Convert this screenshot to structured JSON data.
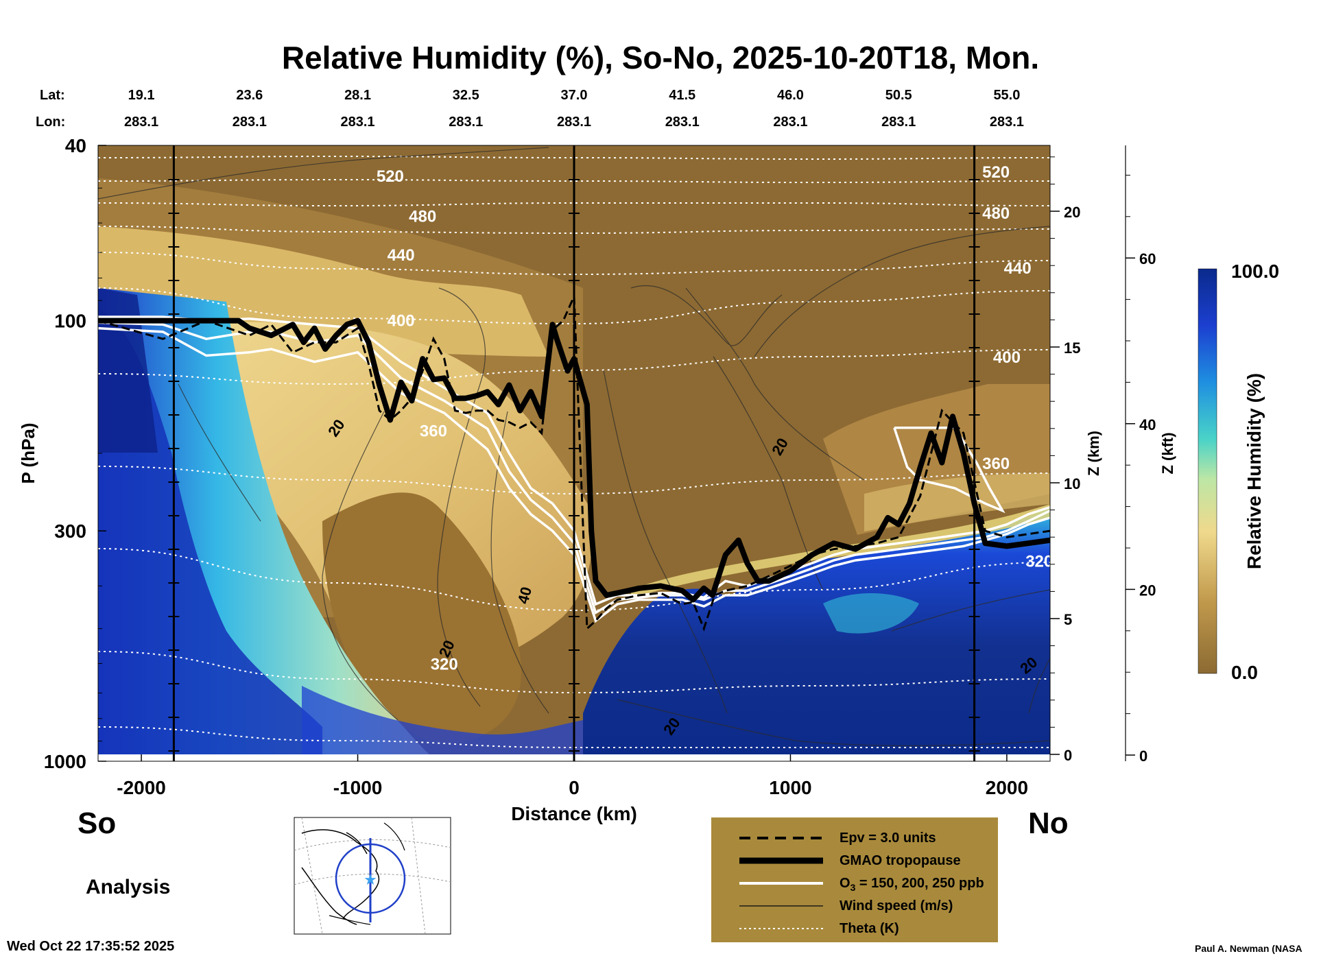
{
  "chart_data": {
    "type": "heatmap",
    "title": "Relative Humidity (%), So-No, 2025-10-20T18, Mon.",
    "xlabel": "Distance (km)",
    "ylabel": "P (hPa)",
    "y2label": "Z (km)",
    "y3label": "Z (kft)",
    "xlim": [
      -2200,
      2200
    ],
    "ylim": [
      1000,
      40
    ],
    "x_ticks": [
      -2000,
      -1000,
      0,
      1000,
      2000
    ],
    "x_tick_labels": [
      "-2000",
      "-1000",
      "0",
      "1000",
      "2000"
    ],
    "y_ticks": [
      40,
      100,
      300,
      1000
    ],
    "y_tick_labels": [
      "40",
      "100",
      "300",
      "1000"
    ],
    "z_km_ticks": [
      0,
      5,
      10,
      15,
      20
    ],
    "z_km_tick_labels": [
      "0",
      "5",
      "10",
      "15",
      "20"
    ],
    "z_kft_ticks": [
      0,
      20,
      40,
      60
    ],
    "z_kft_tick_labels": [
      "0",
      "20",
      "40",
      "60"
    ],
    "lat_label": "Lat:",
    "lon_label": "Lon:",
    "locations": [
      {
        "distance": -2000,
        "lat": "19.1",
        "lon": "283.1"
      },
      {
        "distance": -1500,
        "lat": "23.6",
        "lon": "283.1"
      },
      {
        "distance": -1000,
        "lat": "28.1",
        "lon": "283.1"
      },
      {
        "distance": -500,
        "lat": "32.5",
        "lon": "283.1"
      },
      {
        "distance": 0,
        "lat": "37.0",
        "lon": "283.1"
      },
      {
        "distance": 500,
        "lat": "41.5",
        "lon": "283.1"
      },
      {
        "distance": 1000,
        "lat": "46.0",
        "lon": "283.1"
      },
      {
        "distance": 1500,
        "lat": "50.5",
        "lon": "283.1"
      },
      {
        "distance": 2000,
        "lat": "55.0",
        "lon": "283.1"
      }
    ],
    "colorbar": {
      "label": "Relative Humidity (%)",
      "min": 0.0,
      "max": 100.0,
      "min_label": "0.0",
      "max_label": "100.0"
    },
    "theta_labels": [
      {
        "value": "520",
        "x": -850,
        "p": 47
      },
      {
        "value": "480",
        "x": -700,
        "p": 58
      },
      {
        "value": "440",
        "x": -800,
        "p": 71
      },
      {
        "value": "400",
        "x": -800,
        "p": 100
      },
      {
        "value": "360",
        "x": -650,
        "p": 178
      },
      {
        "value": "320",
        "x": -600,
        "p": 602
      },
      {
        "value": "520",
        "x": 1950,
        "p": 46
      },
      {
        "value": "480",
        "x": 1950,
        "p": 57
      },
      {
        "value": "440",
        "x": 2050,
        "p": 76
      },
      {
        "value": "400",
        "x": 2000,
        "p": 121
      },
      {
        "value": "360",
        "x": 1950,
        "p": 211
      },
      {
        "value": "320",
        "x": 2150,
        "p": 352
      }
    ],
    "wind_labels": [
      {
        "value": "20",
        "x": -1100,
        "p": 175,
        "angle": -55
      },
      {
        "value": "20",
        "x": 950,
        "p": 193,
        "angle": -60
      },
      {
        "value": "40",
        "x": -230,
        "p": 420,
        "angle": -75
      },
      {
        "value": "20",
        "x": -590,
        "p": 555,
        "angle": -65
      },
      {
        "value": "20",
        "x": 2100,
        "p": 605,
        "angle": -40
      },
      {
        "value": "20",
        "x": 450,
        "p": 832,
        "angle": -55
      }
    ],
    "series": [
      {
        "name": "GMAO tropopause",
        "unit": "hPa",
        "x": [
          -2200,
          -1900,
          -1700,
          -1550,
          -1500,
          -1400,
          -1300,
          -1250,
          -1200,
          -1150,
          -1100,
          -1050,
          -1000,
          -950,
          -900,
          -850,
          -800,
          -750,
          -700,
          -650,
          -600,
          -550,
          -500,
          -450,
          -400,
          -350,
          -300,
          -250,
          -200,
          -150,
          -100,
          -80,
          -30,
          0,
          60,
          80,
          100,
          150,
          200,
          250,
          300,
          400,
          500,
          550,
          600,
          640,
          700,
          760,
          800,
          850,
          900,
          1000,
          1100,
          1200,
          1300,
          1400,
          1450,
          1500,
          1550,
          1600,
          1650,
          1700,
          1750,
          1800,
          1850,
          1900,
          2000,
          2100,
          2200
        ],
        "values": [
          100,
          100,
          100,
          100,
          104,
          108,
          102,
          112,
          104,
          116,
          108,
          102,
          100,
          112,
          140,
          168,
          138,
          152,
          122,
          136,
          135,
          150,
          150,
          148,
          145,
          155,
          140,
          160,
          145,
          165,
          102,
          110,
          130,
          122,
          155,
          300,
          390,
          420,
          415,
          410,
          405,
          400,
          410,
          430,
          405,
          420,
          340,
          315,
          355,
          390,
          390,
          370,
          340,
          320,
          330,
          310,
          280,
          290,
          260,
          215,
          180,
          210,
          165,
          200,
          260,
          320,
          325,
          320,
          315
        ]
      },
      {
        "name": "Epv = 3.0 units",
        "unit": "hPa",
        "x": [
          -2200,
          -1900,
          -1700,
          -1500,
          -1400,
          -1300,
          -1200,
          -1100,
          -1000,
          -950,
          -900,
          -850,
          -800,
          -750,
          -700,
          -650,
          -600,
          -550,
          -500,
          -450,
          -400,
          -350,
          -300,
          -250,
          -200,
          -150,
          -100,
          -50,
          0,
          60,
          100,
          150,
          200,
          300,
          400,
          500,
          550,
          600,
          650,
          700,
          800,
          900,
          1000,
          1100,
          1200,
          1300,
          1400,
          1500,
          1600,
          1700,
          1800,
          1900,
          2000,
          2100,
          2200
        ],
        "values": [
          100,
          110,
          100,
          108,
          102,
          118,
          112,
          112,
          104,
          125,
          160,
          168,
          160,
          150,
          130,
          110,
          122,
          160,
          162,
          160,
          160,
          168,
          170,
          175,
          170,
          180,
          105,
          100,
          88,
          500,
          480,
          450,
          430,
          420,
          415,
          440,
          435,
          500,
          420,
          410,
          400,
          380,
          360,
          340,
          330,
          325,
          320,
          310,
          250,
          160,
          180,
          300,
          310,
          305,
          300
        ]
      },
      {
        "name": "O3 = 150 ppb",
        "unit": "hPa",
        "x": [
          -2200,
          -1900,
          -1700,
          -1500,
          -1400,
          -1200,
          -1000,
          -800,
          -600,
          -400,
          -300,
          -200,
          -100,
          0,
          100,
          200,
          300,
          400,
          500,
          600,
          700,
          800,
          900,
          1000,
          1100,
          1200,
          1300,
          1400,
          1500,
          1600,
          1700,
          1800,
          1900,
          2000,
          2100,
          2200
        ],
        "values": [
          98,
          98,
          100,
          99,
          100,
          102,
          104,
          124,
          142,
          162,
          200,
          240,
          260,
          300,
          440,
          420,
          420,
          415,
          415,
          425,
          390,
          400,
          385,
          370,
          355,
          340,
          330,
          325,
          320,
          315,
          310,
          305,
          300,
          290,
          275,
          265
        ]
      },
      {
        "name": "O3 = 200 ppb",
        "unit": "hPa",
        "x": [
          -2200,
          -1900,
          -1700,
          -1500,
          -1400,
          -1200,
          -1000,
          -800,
          -600,
          -400,
          -300,
          -200,
          -100,
          0,
          100,
          200,
          300,
          400,
          500,
          600,
          700,
          800,
          900,
          1000,
          1100,
          1200,
          1300,
          1400,
          1500,
          1600,
          1700,
          1800,
          1900,
          2000,
          2100,
          2200
        ],
        "values": [
          101,
          102,
          110,
          106,
          106,
          112,
          108,
          135,
          152,
          176,
          220,
          255,
          280,
          320,
          460,
          430,
          425,
          420,
          420,
          430,
          410,
          410,
          395,
          380,
          365,
          350,
          340,
          335,
          330,
          325,
          320,
          315,
          310,
          300,
          285,
          270
        ]
      },
      {
        "name": "O3 = 250 ppb",
        "unit": "hPa",
        "x": [
          -2200,
          -1900,
          -1700,
          -1500,
          -1400,
          -1200,
          -1000,
          -800,
          -600,
          -400,
          -300,
          -200,
          -100,
          0,
          100,
          200,
          300,
          400,
          500,
          600,
          700,
          800,
          900,
          1000,
          1100,
          1200,
          1300,
          1400,
          1500,
          1600,
          1700,
          1800,
          1900,
          2000,
          2100,
          2200
        ],
        "values": [
          104,
          106,
          120,
          118,
          116,
          124,
          118,
          146,
          162,
          196,
          240,
          275,
          300,
          340,
          480,
          440,
          430,
          430,
          430,
          445,
          420,
          420,
          405,
          390,
          375,
          360,
          350,
          345,
          340,
          335,
          330,
          325,
          315,
          305,
          290,
          280
        ]
      },
      {
        "name": "O3 = 200 ppb (north lobe)",
        "unit": "hPa",
        "x": [
          1480,
          1480,
          1760,
          1860,
          1920,
          1980,
          1900,
          1760,
          1600,
          1540,
          1480
        ],
        "values": [
          175,
          175,
          175,
          210,
          240,
          270,
          260,
          240,
          230,
          215,
          175
        ]
      }
    ],
    "legend": [
      {
        "label": "Epv = 3.0 units",
        "style": "dashed"
      },
      {
        "label": "GMAO tropopause",
        "style": "thick"
      },
      {
        "label": "O3 = 150, 200, 250 ppb",
        "style": "white"
      },
      {
        "label": "Wind speed (m/s)",
        "style": "thin"
      },
      {
        "label": "Theta (K)",
        "style": "dotted"
      }
    ],
    "legend_label_parts": {
      "o3_prefix": "O",
      "o3_sub": "3",
      "o3_rest": " = 150, 200, 250 ppb"
    }
  },
  "labels": {
    "south": "So",
    "north": "No",
    "analysis": "Analysis",
    "timestamp": "Wed Oct 22 17:35:52 2025",
    "credit": "Paul A. Newman (NASA"
  },
  "colors": {
    "dry": "#8b6a32",
    "moist_mid": "#d9b868",
    "moist_high": "#f2e19e",
    "teal": "#4fd0c8",
    "blue": "#1e4fd0",
    "navy": "#0a2a8c",
    "legend_bg": "#a98a3c"
  }
}
